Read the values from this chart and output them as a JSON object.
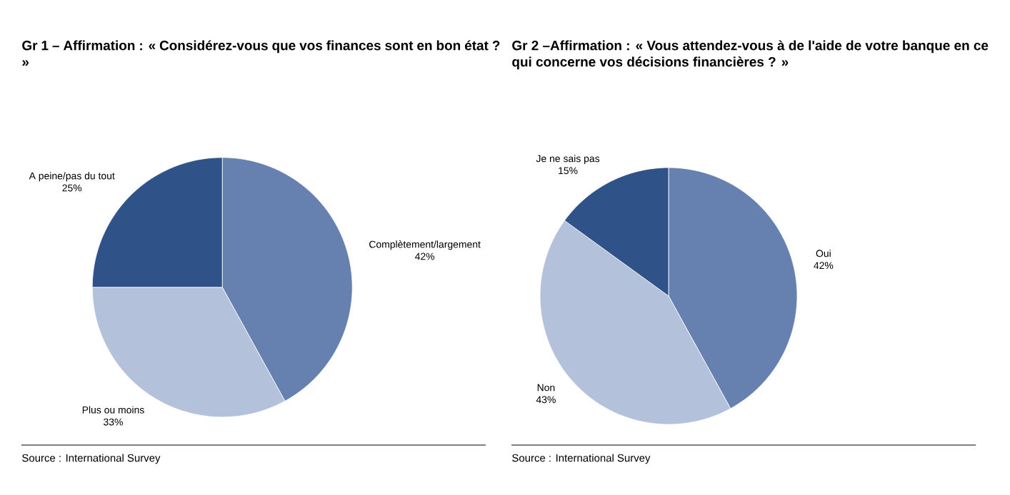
{
  "chart_data": [
    {
      "type": "pie",
      "title": "Gr 1 – Affirmation : « Considérez-vous que vos finances sont en bon état ? »",
      "categories": [
        "Complètement/largement",
        "Plus ou moins",
        "A peine/pas du tout"
      ],
      "values": [
        42,
        33,
        25
      ],
      "value_labels": [
        "42%",
        "33%",
        "25%"
      ],
      "colors": [
        "#6680b0",
        "#b4c1da",
        "#2f5289"
      ],
      "annotations": [
        "Source : International Survey"
      ]
    },
    {
      "type": "pie",
      "title": "Gr 2 –Affirmation : « Vous attendez-vous à de l'aide de votre banque en ce qui concerne vos décisions financières ? »",
      "categories": [
        "Oui",
        "Non",
        "Je ne sais pas"
      ],
      "values": [
        42,
        43,
        15
      ],
      "value_labels": [
        "42%",
        "43%",
        "15%"
      ],
      "colors": [
        "#6680b0",
        "#b4c1da",
        "#2f5289"
      ],
      "annotations": [
        "Source : International Survey"
      ]
    }
  ]
}
